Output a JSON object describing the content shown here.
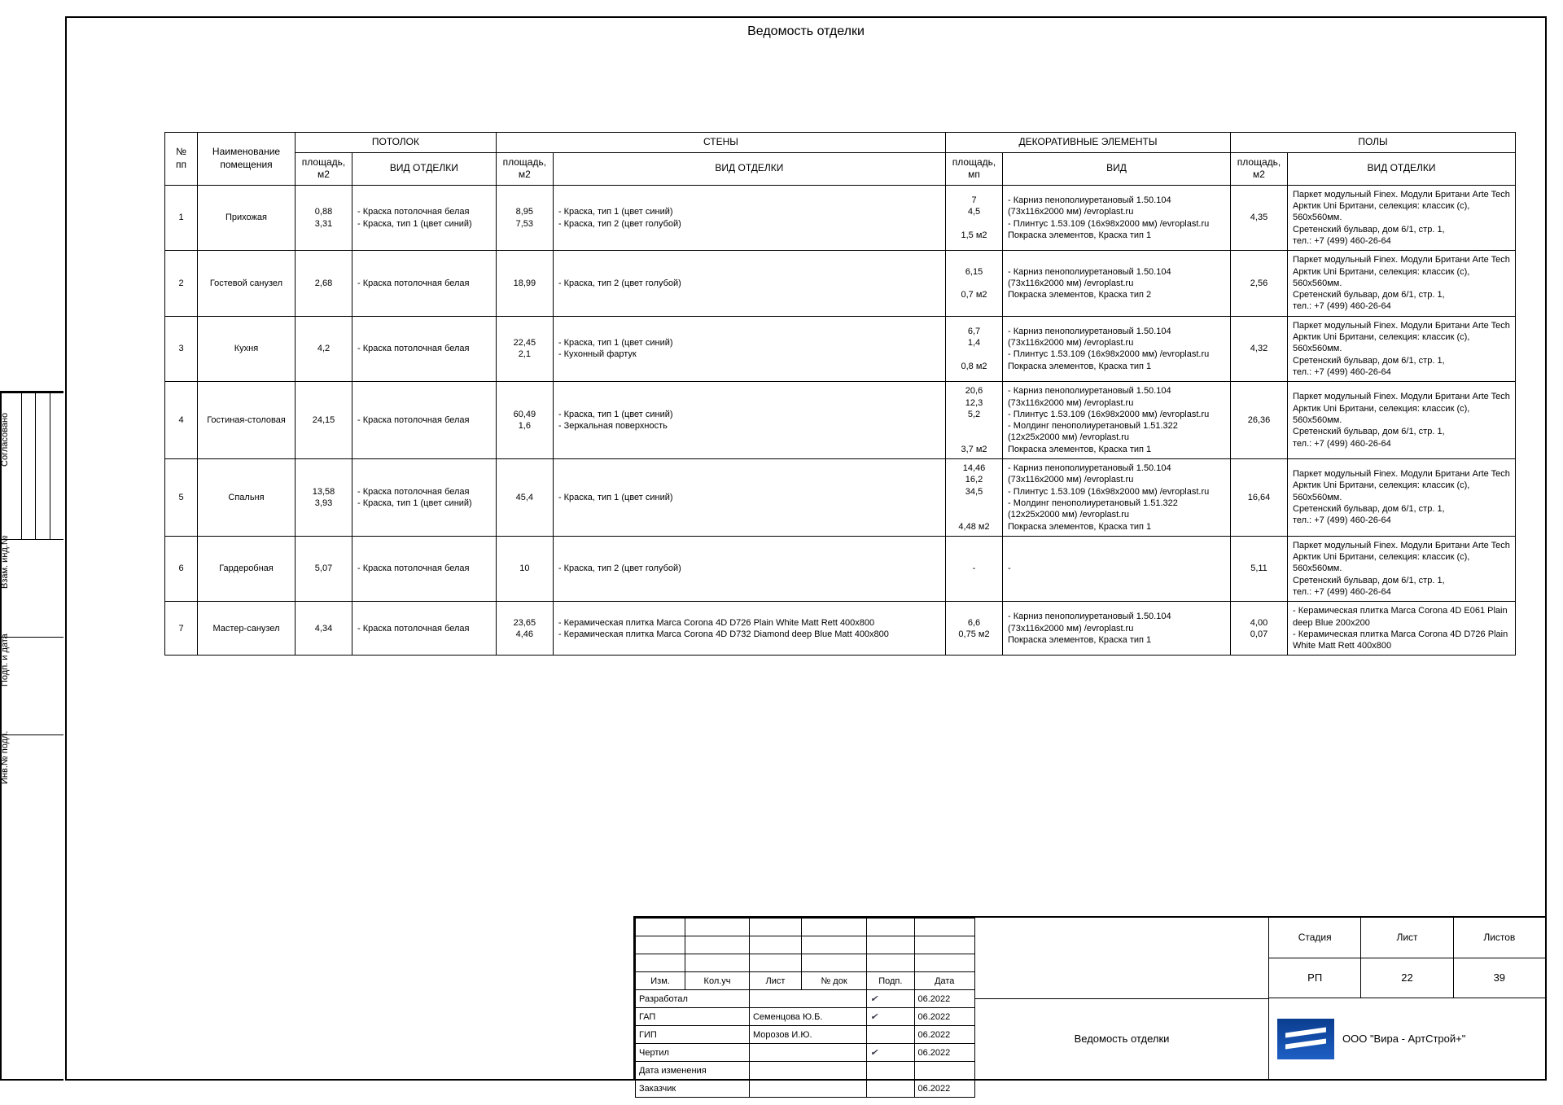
{
  "doc": {
    "title": "Ведомость отделки",
    "groups": {
      "ceiling": "ПОТОЛОК",
      "walls": "СТЕНЫ",
      "decor": "ДЕКОРАТИВНЫЕ ЭЛЕМЕНТЫ",
      "floor": "ПОЛЫ"
    },
    "head": {
      "num": "№ пп",
      "room": "Наименование помещения",
      "area_m2": "площадь, м2",
      "area_mp": "площадь, мп",
      "finish": "ВИД ОТДЕЛКИ",
      "kind": "ВИД"
    },
    "rows": [
      {
        "n": "1",
        "room": "Прихожая",
        "ceil_a": "0,88\n3,31",
        "ceil": "- Краска потолочная белая\n- Краска, тип 1 (цвет синий)",
        "wall_a": "8,95\n7,53",
        "wall": "- Краска, тип 1 (цвет синий)\n- Краска, тип 2 (цвет голубой)",
        "dec_a": "7\n4,5\n\n1,5 м2",
        "dec": "- Карниз пенополиуретановый 1.50.104 (73х116х2000 мм) /evroplast.ru\n- Плинтус 1.53.109 (16х98х2000 мм) /evroplast.ru\nПокраска элементов, Краска тип 1",
        "fl_a": "4,35",
        "fl": "Паркет модульный Finex. Модули Британи Arte Tech Арктик Uni Британи, селекция: классик (с), 560х560мм.\nСретенский бульвар, дом 6/1, стр. 1,\nтел.: +7 (499) 460-26-64"
      },
      {
        "n": "2",
        "room": "Гостевой санузел",
        "ceil_a": "2,68",
        "ceil": "- Краска потолочная белая",
        "wall_a": "18,99",
        "wall": "- Краска, тип 2 (цвет голубой)",
        "dec_a": "6,15\n\n0,7 м2",
        "dec": "- Карниз пенополиуретановый 1.50.104 (73х116х2000 мм) /evroplast.ru\nПокраска элементов, Краска тип 2",
        "fl_a": "2,56",
        "fl": "Паркет модульный Finex. Модули Британи Arte Tech Арктик Uni Британи, селекция: классик (с), 560х560мм.\nСретенский бульвар, дом 6/1, стр. 1,\nтел.: +7 (499) 460-26-64"
      },
      {
        "n": "3",
        "room": "Кухня",
        "ceil_a": "4,2",
        "ceil": "- Краска потолочная белая",
        "wall_a": "22,45\n2,1",
        "wall": "- Краска, тип 1 (цвет синий)\n- Кухонный фартук",
        "dec_a": "6,7\n1,4\n\n0,8 м2",
        "dec": "- Карниз пенополиуретановый 1.50.104 (73х116х2000 мм) /evroplast.ru\n- Плинтус 1.53.109 (16х98х2000 мм) /evroplast.ru\nПокраска элементов, Краска тип 1",
        "fl_a": "4,32",
        "fl": "Паркет модульный Finex. Модули Британи Arte Tech Арктик Uni Британи, селекция: классик (с), 560х560мм.\nСретенский бульвар, дом 6/1, стр. 1,\nтел.: +7 (499) 460-26-64"
      },
      {
        "n": "4",
        "room": "Гостиная-столовая",
        "ceil_a": "24,15",
        "ceil": "- Краска потолочная белая",
        "wall_a": "60,49\n1,6",
        "wall": "- Краска, тип 1 (цвет синий)\n- Зеркальная поверхность",
        "dec_a": "20,6\n12,3\n5,2\n\n\n3,7 м2",
        "dec": "- Карниз пенополиуретановый 1.50.104 (73х116х2000 мм) /evroplast.ru\n- Плинтус 1.53.109 (16х98х2000 мм) /evroplast.ru\n- Молдинг пенополиуретановый 1.51.322  (12х25х2000 мм) /evroplast.ru\nПокраска элементов, Краска тип 1",
        "fl_a": "26,36",
        "fl": "Паркет модульный Finex. Модули Британи Arte Tech Арктик Uni Британи, селекция: классик (с), 560х560мм.\nСретенский бульвар, дом 6/1, стр. 1,\nтел.: +7 (499) 460-26-64"
      },
      {
        "n": "5",
        "room": "Спальня",
        "ceil_a": "13,58\n3,93",
        "ceil": "- Краска потолочная белая\n- Краска, тип 1 (цвет синий)",
        "wall_a": "45,4",
        "wall": "- Краска, тип 1 (цвет синий)",
        "dec_a": "14,46\n16,2\n34,5\n\n\n4,48 м2",
        "dec": "- Карниз пенополиуретановый 1.50.104 (73х116х2000 мм) /evroplast.ru\n- Плинтус 1.53.109 (16х98х2000 мм) /evroplast.ru\n- Молдинг пенополиуретановый 1.51.322  (12х25х2000 мм) /evroplast.ru\nПокраска элементов, Краска тип 1",
        "fl_a": "16,64",
        "fl": "Паркет модульный Finex. Модули Британи Arte Tech Арктик Uni Британи, селекция: классик (с), 560х560мм.\nСретенский бульвар, дом 6/1, стр. 1,\nтел.: +7 (499) 460-26-64"
      },
      {
        "n": "6",
        "room": "Гардеробная",
        "ceil_a": "5,07",
        "ceil": "- Краска потолочная белая",
        "wall_a": "10",
        "wall": "- Краска, тип 2 (цвет голубой)",
        "dec_a": "-",
        "dec": "-",
        "fl_a": "5,11",
        "fl": "Паркет модульный Finex. Модули Британи Arte Tech Арктик Uni Британи, селекция: классик (с), 560х560мм.\nСретенский бульвар, дом 6/1, стр. 1,\nтел.: +7 (499) 460-26-64"
      },
      {
        "n": "7",
        "room": "Мастер-санузел",
        "ceil_a": "4,34",
        "ceil": "- Краска потолочная белая",
        "wall_a": "23,65\n4,46",
        "wall": "- Керамическая плитка Marca Corona 4D D726 Plain White Matt Rett 400х800\n- Керамическая плитка Marca Corona 4D D732 Diamond deep Blue Matt 400х800",
        "dec_a": "6,6\n0,75 м2",
        "dec": "- Карниз пенополиуретановый 1.50.104 (73х116х2000 мм) /evroplast.ru\nПокраска элементов, Краска тип 1",
        "fl_a": "4,00\n0,07",
        "fl": "- Керамическая плитка Marca Corona 4D E061 Plain deep Blue 200х200\n- Керамическая плитка Marca Corona 4D D726 Plain White Matt Rett 400х800"
      }
    ]
  },
  "side": {
    "agreed": "Согласовано",
    "inv": "Взам. инд.№",
    "sign": "Подп. и дата",
    "invno": "Инв.№ подл."
  },
  "tb": {
    "h_izm": "Изм.",
    "h_kol": "Кол.уч",
    "h_list": "Лист",
    "h_doc": "№ док",
    "h_podp": "Подп.",
    "h_date": "Дата",
    "r_dev": "Разработал",
    "r_gap": "ГАП",
    "r_gip": "ГИП",
    "r_draw": "Чертил",
    "r_chg": "Дата изменения",
    "r_cust": "Заказчик",
    "gap_name": "Семенцова Ю.Б.",
    "gip_name": "Морозов И.Ю.",
    "date": "06.2022",
    "sheet_title": "Ведомость отделки",
    "stage_h": "Стадия",
    "sheet_h": "Лист",
    "sheets_h": "Листов",
    "stage": "РП",
    "sheet": "22",
    "sheets": "39",
    "company": "ООО \"Вира - АртСтрой+\""
  }
}
